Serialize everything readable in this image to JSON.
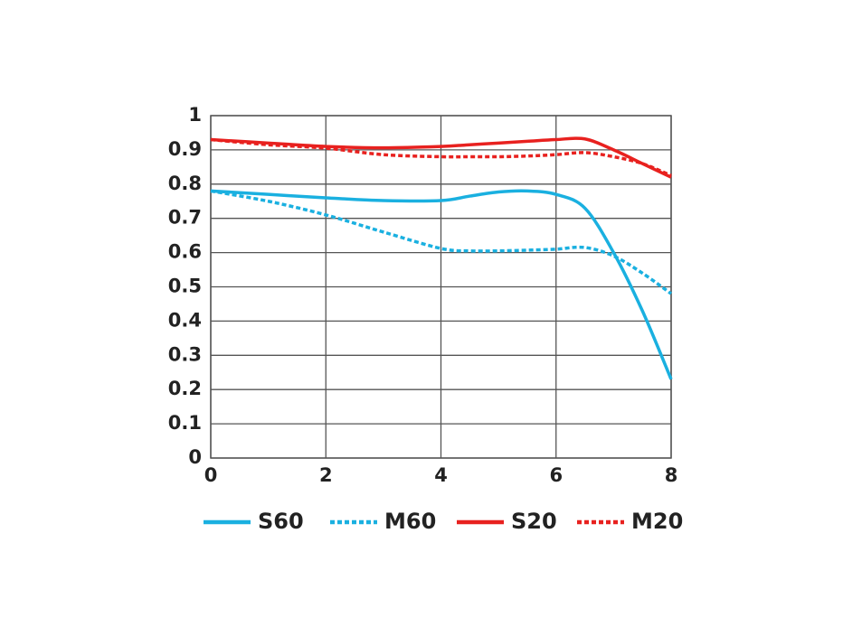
{
  "chart_data": {
    "type": "line",
    "xlim": [
      0,
      8
    ],
    "xticks": [
      0,
      2,
      4,
      6,
      8
    ],
    "ylim": [
      0,
      1
    ],
    "yticks": [
      0,
      0.1,
      0.2,
      0.3,
      0.4,
      0.5,
      0.6,
      0.7,
      0.8,
      0.9,
      1
    ],
    "grid": true,
    "legend": "bottom",
    "x": [
      0,
      1,
      2,
      3,
      4,
      4.5,
      5,
      5.5,
      6,
      6.5,
      7,
      7.5,
      8
    ],
    "series": [
      {
        "name": "S60",
        "color": "#1ab0e0",
        "style": "solid",
        "values": [
          0.78,
          0.77,
          0.76,
          0.752,
          0.752,
          0.765,
          0.777,
          0.78,
          0.77,
          0.73,
          0.6,
          0.43,
          0.23
        ]
      },
      {
        "name": "M60",
        "color": "#1ab0e0",
        "style": "dashed",
        "values": [
          0.78,
          0.75,
          0.71,
          0.66,
          0.612,
          0.605,
          0.605,
          0.607,
          0.61,
          0.615,
          0.59,
          0.54,
          0.48
        ]
      },
      {
        "name": "S20",
        "color": "#e8211f",
        "style": "solid",
        "values": [
          0.93,
          0.92,
          0.91,
          0.906,
          0.91,
          0.915,
          0.92,
          0.925,
          0.93,
          0.932,
          0.9,
          0.86,
          0.82
        ]
      },
      {
        "name": "M20",
        "color": "#e8211f",
        "style": "dashed",
        "values": [
          0.93,
          0.915,
          0.905,
          0.886,
          0.88,
          0.88,
          0.88,
          0.882,
          0.886,
          0.892,
          0.88,
          0.86,
          0.825
        ]
      }
    ]
  }
}
